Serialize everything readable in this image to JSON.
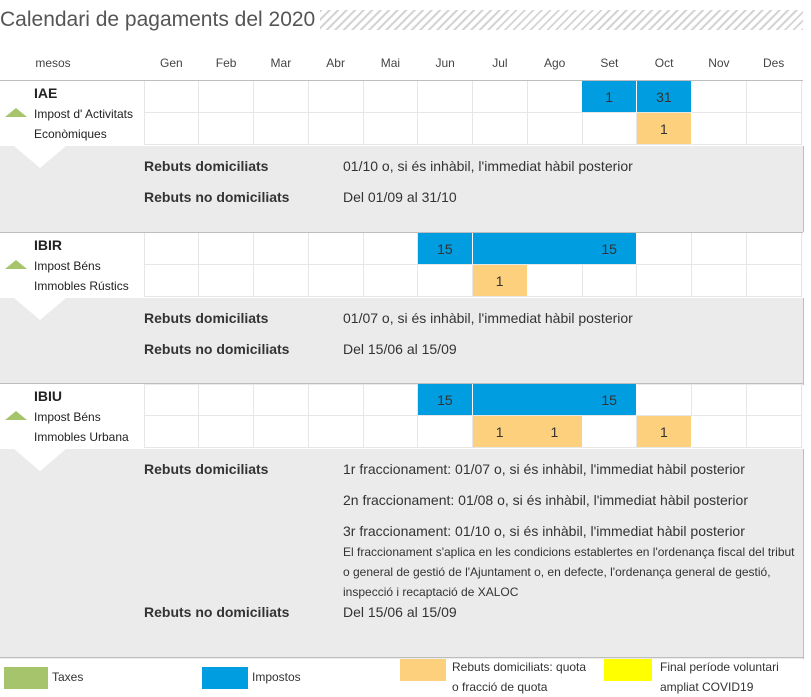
{
  "title": "Calendari de pagaments del 2020",
  "header": {
    "mesos_label": "mesos",
    "months": [
      "Gen",
      "Feb",
      "Mar",
      "Abr",
      "Mai",
      "Jun",
      "Jul",
      "Ago",
      "Set",
      "Oct",
      "Nov",
      "Des"
    ]
  },
  "colors": {
    "taxes": "#a5c46b",
    "impostos": "#009ee0",
    "domiciliats": "#fdd07e",
    "covid": "#ffff00"
  },
  "taxes": [
    {
      "code": "IAE",
      "desc_line1": "Impost d' Activitats",
      "desc_line2": "Econòmiques",
      "impostos_row": [
        "",
        "",
        "",
        "",
        "",
        "",
        "",
        "",
        "1",
        "31",
        "",
        ""
      ],
      "impostos_fill": [
        0,
        0,
        0,
        0,
        0,
        0,
        0,
        0,
        1,
        1,
        0,
        0
      ],
      "domiciliats_row": [
        "",
        "",
        "",
        "",
        "",
        "",
        "",
        "",
        "",
        "1",
        "",
        ""
      ],
      "domiciliats_fill": [
        0,
        0,
        0,
        0,
        0,
        0,
        0,
        0,
        0,
        1,
        0,
        0
      ],
      "details": {
        "domiciliats_label": "Rebuts domiciliats",
        "domiciliats_values": [
          "01/10 o, si és inhàbil, l'immediat hàbil posterior"
        ],
        "no_domiciliats_label": "Rebuts no domiciliats",
        "no_domiciliats_value": "Del 01/09 al 31/10"
      }
    },
    {
      "code": "IBIR",
      "desc_line1": "Impost Béns",
      "desc_line2": "Immobles Rústics",
      "impostos_row": [
        "",
        "",
        "",
        "",
        "",
        "15",
        "",
        "",
        "15",
        "",
        "",
        ""
      ],
      "impostos_fill": [
        0,
        0,
        0,
        0,
        0,
        1,
        1,
        1,
        1,
        0,
        0,
        0
      ],
      "domiciliats_row": [
        "",
        "",
        "",
        "",
        "",
        "",
        "1",
        "",
        "",
        "",
        "",
        ""
      ],
      "domiciliats_fill": [
        0,
        0,
        0,
        0,
        0,
        0,
        1,
        0,
        0,
        0,
        0,
        0
      ],
      "details": {
        "domiciliats_label": "Rebuts domiciliats",
        "domiciliats_values": [
          "01/07 o, si és inhàbil, l'immediat hàbil posterior"
        ],
        "no_domiciliats_label": "Rebuts no domiciliats",
        "no_domiciliats_value": "Del 15/06 al 15/09"
      }
    },
    {
      "code": "IBIU",
      "desc_line1": "Impost Béns",
      "desc_line2": "Immobles Urbana",
      "impostos_row": [
        "",
        "",
        "",
        "",
        "",
        "15",
        "",
        "",
        "15",
        "",
        "",
        ""
      ],
      "impostos_fill": [
        0,
        0,
        0,
        0,
        0,
        1,
        1,
        1,
        1,
        0,
        0,
        0
      ],
      "domiciliats_row": [
        "",
        "",
        "",
        "",
        "",
        "",
        "1",
        "1",
        "",
        "1",
        "",
        ""
      ],
      "domiciliats_fill": [
        0,
        0,
        0,
        0,
        0,
        0,
        1,
        1,
        0,
        1,
        0,
        0
      ],
      "details": {
        "domiciliats_label": "Rebuts domiciliats",
        "domiciliats_values": [
          "1r fraccionament: 01/07 o, si és inhàbil, l'immediat hàbil posterior",
          "2n fraccionament: 01/08 o, si és inhàbil, l'immediat hàbil posterior",
          "3r fraccionament: 01/10 o, si és inhàbil, l'immediat hàbil posterior"
        ],
        "note": "El fraccionament s'aplica en les condicions establertes en l'ordenança fiscal del tribut o general de gestió de l'Ajuntament o, en defecte, l'ordenança general de gestió, inspecció i recaptació de XALOC",
        "no_domiciliats_label": "Rebuts no domiciliats",
        "no_domiciliats_value": "Del 15/06 al 15/09"
      }
    }
  ],
  "legend": [
    {
      "key": "taxes",
      "label": "Taxes"
    },
    {
      "key": "impostos",
      "label": "Impostos"
    },
    {
      "key": "domiciliats",
      "label": "Rebuts domiciliats: quota o fracció de quota"
    },
    {
      "key": "covid",
      "label": "Final període voluntari ampliat COVID19"
    }
  ]
}
